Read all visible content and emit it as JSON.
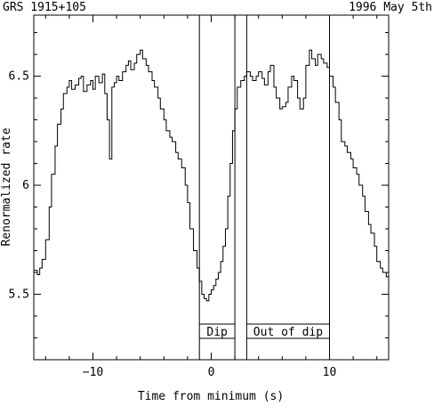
{
  "header": {
    "source": "GRS 1915+105",
    "date": "1996 May 5th"
  },
  "chart_data": {
    "type": "line",
    "step": true,
    "title": "",
    "xlabel": "Time from minimum (s)",
    "ylabel": "Renormalized rate",
    "xlim": [
      -15,
      15
    ],
    "ylim": [
      5.2,
      6.78
    ],
    "xticks": [
      -10,
      0,
      10
    ],
    "xtick_labels": [
      "−10",
      "0",
      "10"
    ],
    "yticks": [
      5.5,
      6,
      6.5
    ],
    "ytick_labels": [
      "5.5",
      "6",
      "6.5"
    ],
    "grid": false,
    "series": [
      {
        "name": "",
        "x": [
          -15.0,
          -14.7,
          -14.5,
          -14.3,
          -14.0,
          -13.7,
          -13.5,
          -13.2,
          -13.0,
          -12.7,
          -12.5,
          -12.2,
          -12.0,
          -11.8,
          -11.5,
          -11.2,
          -11.0,
          -10.8,
          -10.5,
          -10.2,
          -10.0,
          -9.8,
          -9.5,
          -9.2,
          -9.0,
          -8.8,
          -8.6,
          -8.4,
          -8.2,
          -8.0,
          -7.8,
          -7.5,
          -7.2,
          -7.0,
          -6.8,
          -6.5,
          -6.3,
          -6.0,
          -5.8,
          -5.5,
          -5.3,
          -5.0,
          -4.8,
          -4.5,
          -4.3,
          -4.0,
          -3.8,
          -3.5,
          -3.3,
          -3.0,
          -2.8,
          -2.5,
          -2.2,
          -2.0,
          -1.8,
          -1.5,
          -1.2,
          -1.0,
          -0.8,
          -0.6,
          -0.4,
          -0.2,
          0.0,
          0.2,
          0.4,
          0.6,
          0.8,
          1.0,
          1.2,
          1.4,
          1.6,
          1.8,
          2.0,
          2.2,
          2.5,
          2.8,
          3.0,
          3.3,
          3.5,
          3.8,
          4.0,
          4.3,
          4.5,
          4.8,
          5.0,
          5.3,
          5.5,
          5.8,
          6.0,
          6.3,
          6.5,
          6.8,
          7.0,
          7.3,
          7.5,
          7.8,
          8.0,
          8.3,
          8.5,
          8.8,
          9.0,
          9.3,
          9.5,
          9.8,
          10.0,
          10.3,
          10.5,
          10.8,
          11.0,
          11.3,
          11.5,
          11.8,
          12.0,
          12.3,
          12.5,
          12.8,
          13.0,
          13.3,
          13.5,
          13.8,
          14.0,
          14.3,
          14.5,
          14.8,
          15.0
        ],
        "y": [
          5.61,
          5.59,
          5.62,
          5.66,
          5.75,
          5.9,
          6.05,
          6.18,
          6.28,
          6.35,
          6.42,
          6.45,
          6.48,
          6.44,
          6.46,
          6.49,
          6.5,
          6.43,
          6.46,
          6.48,
          6.44,
          6.5,
          6.47,
          6.51,
          6.42,
          6.3,
          6.12,
          6.45,
          6.47,
          6.5,
          6.48,
          6.52,
          6.55,
          6.57,
          6.53,
          6.56,
          6.6,
          6.62,
          6.58,
          6.55,
          6.52,
          6.48,
          6.45,
          6.4,
          6.35,
          6.3,
          6.25,
          6.22,
          6.2,
          6.15,
          6.12,
          6.08,
          6.0,
          5.92,
          5.8,
          5.7,
          5.62,
          5.56,
          5.5,
          5.48,
          5.47,
          5.5,
          5.52,
          5.54,
          5.57,
          5.6,
          5.65,
          5.72,
          5.8,
          5.95,
          6.1,
          6.25,
          6.35,
          6.45,
          6.48,
          6.5,
          6.52,
          6.5,
          6.48,
          6.5,
          6.52,
          6.49,
          6.46,
          6.52,
          6.55,
          6.45,
          6.4,
          6.35,
          6.36,
          6.38,
          6.45,
          6.5,
          6.48,
          6.4,
          6.35,
          6.4,
          6.55,
          6.62,
          6.58,
          6.55,
          6.6,
          6.58,
          6.56,
          6.54,
          6.5,
          6.45,
          6.38,
          6.3,
          6.2,
          6.18,
          6.15,
          6.12,
          6.08,
          6.05,
          6.0,
          5.95,
          5.88,
          5.82,
          5.78,
          5.72,
          5.65,
          5.62,
          5.6,
          5.58,
          5.6
        ]
      }
    ],
    "intervals": [
      {
        "label": "Dip",
        "x_start": -1.0,
        "x_end": 2.0
      },
      {
        "label": "Out of dip",
        "x_start": 3.0,
        "x_end": 10.0
      }
    ]
  }
}
